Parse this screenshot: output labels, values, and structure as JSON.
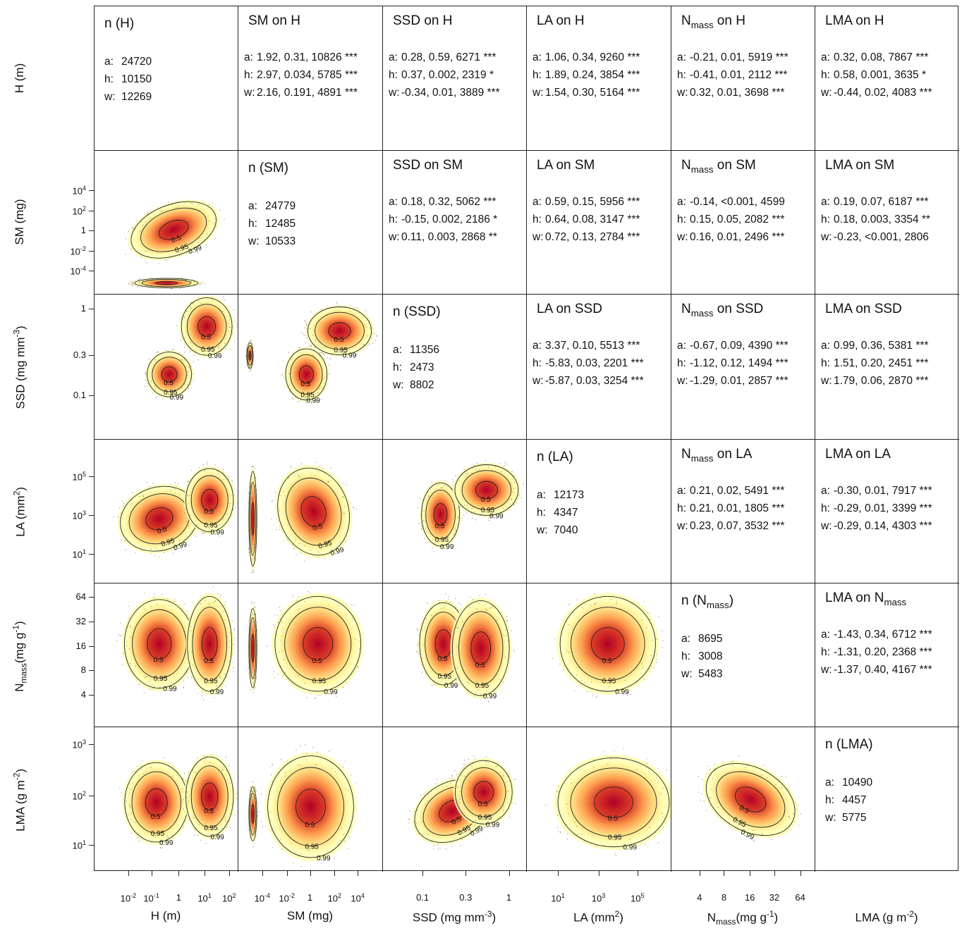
{
  "chart_data": {
    "type": "heatmap",
    "title": "",
    "variables": [
      {
        "key": "H",
        "label": "H (m)",
        "ticks": [
          "10^-2",
          "10^-1",
          "1",
          "10^1",
          "10^2"
        ]
      },
      {
        "key": "SM",
        "label": "SM (mg)",
        "ticks": [
          "10^-4",
          "10^-2",
          "1",
          "10^2",
          "10^4"
        ]
      },
      {
        "key": "SSD",
        "label": "SSD (mg mm^-3)",
        "ticks": [
          "0.1",
          "0.3",
          "1"
        ]
      },
      {
        "key": "LA",
        "label": "LA (mm^2)",
        "ticks": [
          "10^1",
          "10^3",
          "10^5"
        ]
      },
      {
        "key": "Nmass",
        "label": "Nmass(mg g^-1)",
        "ticks": [
          "4",
          "8",
          "16",
          "32",
          "64"
        ]
      },
      {
        "key": "LMA",
        "label": "LMA (g m^-2)",
        "ticks": [
          "10^1",
          "10^2",
          "10^3"
        ]
      }
    ],
    "y_tick_labels": {
      "H": [],
      "SM": [
        "10^4",
        "10^2",
        "1",
        "10^-2",
        "10^-4"
      ],
      "SSD": [
        "1",
        "0.3",
        "0.1"
      ],
      "LA": [
        "10^5",
        "10^3",
        "10^1"
      ],
      "Nmass": [
        "64",
        "32",
        "16",
        "8",
        "4"
      ],
      "LMA": [
        "10^3",
        "10^2",
        "10^1"
      ]
    },
    "contour_levels": [
      "0.5",
      "0.95",
      "0.99"
    ],
    "diagonal": [
      {
        "title": "n (H)",
        "a": "24720",
        "h": "10150",
        "w": "12269"
      },
      {
        "title": "n (SM)",
        "a": "24779",
        "h": "12485",
        "w": "10533"
      },
      {
        "title": "n (SSD)",
        "a": "11356",
        "h": "2473",
        "w": "8802"
      },
      {
        "title": "n (LA)",
        "a": "12173",
        "h": "4347",
        "w": "7040"
      },
      {
        "title": "n (Nmass)",
        "a": "8695",
        "h": "3008",
        "w": "5483"
      },
      {
        "title": "n (LMA)",
        "a": "10490",
        "h": "4457",
        "w": "5775"
      }
    ],
    "regressions": [
      {
        "row": 0,
        "col": 1,
        "title": "SM on H",
        "a": "1.92, 0.31, 10826 ***",
        "h": "2.97, 0.034, 5785 ***",
        "w": "2.16, 0.191, 4891 ***"
      },
      {
        "row": 0,
        "col": 2,
        "title": "SSD on H",
        "a": "0.28, 0.59, 6271 ***",
        "h": "0.37, 0.002, 2319 *",
        "w": "-0.34, 0.01, 3889 ***"
      },
      {
        "row": 0,
        "col": 3,
        "title": "LA on H",
        "a": "1.06, 0.34, 9260 ***",
        "h": "1.89, 0.24, 3854 ***",
        "w": "1.54, 0.30, 5164 ***"
      },
      {
        "row": 0,
        "col": 4,
        "title": "Nmass on H",
        "a": "-0.21, 0.01, 5919 ***",
        "h": "-0.41, 0.01, 2112 ***",
        "w": "0.32, 0.01, 3698 ***"
      },
      {
        "row": 0,
        "col": 5,
        "title": "LMA on H",
        "a": "0.32, 0.08, 7867 ***",
        "h": "0.58, 0.001, 3635 *",
        "w": "-0.44, 0.02, 4083 ***"
      },
      {
        "row": 1,
        "col": 2,
        "title": "SSD on SM",
        "a": "0.18, 0.32, 5062 ***",
        "h": "-0.15, 0.002, 2186 *",
        "w": "0.11, 0.003, 2868 **"
      },
      {
        "row": 1,
        "col": 3,
        "title": "LA on SM",
        "a": "0.59, 0.15, 5956 ***",
        "h": "0.64, 0.08, 3147 ***",
        "w": "0.72, 0.13, 2784 ***"
      },
      {
        "row": 1,
        "col": 4,
        "title": "Nmass on SM",
        "a": "-0.14, <0.001, 4599",
        "h": "0.15, 0.05, 2082 ***",
        "w": "0.16, 0.01, 2496 ***"
      },
      {
        "row": 1,
        "col": 5,
        "title": "LMA on SM",
        "a": "0.19, 0.07, 6187 ***",
        "h": "0.18, 0.003, 3354 **",
        "w": "-0.23, <0.001, 2806"
      },
      {
        "row": 2,
        "col": 3,
        "title": "LA on SSD",
        "a": "3.37, 0.10, 5513 ***",
        "h": "-5.83, 0.03, 2201 ***",
        "w": "-5.87, 0.03, 3254 ***"
      },
      {
        "row": 2,
        "col": 4,
        "title": "Nmass on SSD",
        "a": "-0.67, 0.09, 4390 ***",
        "h": "-1.12, 0.12, 1494 ***",
        "w": "-1.29, 0.01, 2857 ***"
      },
      {
        "row": 2,
        "col": 5,
        "title": "LMA on SSD",
        "a": "0.99, 0.36, 5381 ***",
        "h": "1.51, 0.20, 2451 ***",
        "w": "1.79, 0.06, 2870 ***"
      },
      {
        "row": 3,
        "col": 4,
        "title": "Nmass on LA",
        "a": "0.21, 0.02, 5491 ***",
        "h": "0.21, 0.01, 1805 ***",
        "w": "0.23, 0.07, 3532 ***"
      },
      {
        "row": 3,
        "col": 5,
        "title": "LMA on LA",
        "a": "-0.30, 0.01, 7917 ***",
        "h": "-0.29, 0.01, 3399 ***",
        "w": "-0.29, 0.14, 4303 ***"
      },
      {
        "row": 4,
        "col": 5,
        "title": "LMA on Nmass",
        "a": "-1.43, 0.34, 6712 ***",
        "h": "-1.31, 0.20, 2368 ***",
        "w": "-1.37, 0.40, 4167 ***"
      }
    ],
    "density_clusters": [
      {
        "row": 1,
        "col": 0,
        "blobs": [
          [
            0.55,
            0.55,
            0.28,
            0.16,
            -0.35
          ],
          [
            0.5,
            0.92,
            0.2,
            0.03,
            0
          ]
        ]
      },
      {
        "row": 2,
        "col": 0,
        "blobs": [
          [
            0.52,
            0.55,
            0.14,
            0.14,
            0
          ],
          [
            0.78,
            0.22,
            0.16,
            0.18,
            0
          ]
        ]
      },
      {
        "row": 2,
        "col": 1,
        "blobs": [
          [
            0.47,
            0.55,
            0.13,
            0.16,
            0
          ],
          [
            0.7,
            0.25,
            0.2,
            0.15,
            0
          ],
          [
            0.08,
            0.42,
            0.02,
            0.08,
            0
          ]
        ]
      },
      {
        "row": 2,
        "col": 2,
        "blobs": []
      },
      {
        "row": 3,
        "col": 0,
        "blobs": [
          [
            0.45,
            0.55,
            0.25,
            0.2,
            -0.3
          ],
          [
            0.8,
            0.42,
            0.15,
            0.2,
            0
          ]
        ]
      },
      {
        "row": 3,
        "col": 1,
        "blobs": [
          [
            0.52,
            0.5,
            0.22,
            0.28,
            -0.3
          ],
          [
            0.1,
            0.55,
            0.025,
            0.3,
            0
          ]
        ]
      },
      {
        "row": 3,
        "col": 2,
        "blobs": [
          [
            0.4,
            0.52,
            0.12,
            0.2,
            0
          ],
          [
            0.72,
            0.35,
            0.2,
            0.16,
            0
          ]
        ]
      },
      {
        "row": 4,
        "col": 0,
        "blobs": [
          [
            0.45,
            0.42,
            0.22,
            0.28,
            0
          ],
          [
            0.8,
            0.42,
            0.14,
            0.3,
            0
          ]
        ]
      },
      {
        "row": 4,
        "col": 1,
        "blobs": [
          [
            0.55,
            0.42,
            0.27,
            0.3,
            0
          ],
          [
            0.1,
            0.45,
            0.025,
            0.25,
            0
          ]
        ]
      },
      {
        "row": 4,
        "col": 2,
        "blobs": [
          [
            0.42,
            0.42,
            0.15,
            0.26,
            0
          ],
          [
            0.68,
            0.45,
            0.18,
            0.3,
            0
          ]
        ]
      },
      {
        "row": 4,
        "col": 3,
        "blobs": [
          [
            0.56,
            0.42,
            0.3,
            0.3,
            0
          ]
        ]
      },
      {
        "row": 5,
        "col": 0,
        "blobs": [
          [
            0.43,
            0.52,
            0.2,
            0.25,
            0
          ],
          [
            0.8,
            0.48,
            0.15,
            0.25,
            0
          ]
        ]
      },
      {
        "row": 5,
        "col": 1,
        "blobs": [
          [
            0.5,
            0.55,
            0.27,
            0.32,
            0
          ],
          [
            0.1,
            0.6,
            0.025,
            0.17,
            0
          ]
        ]
      },
      {
        "row": 5,
        "col": 2,
        "blobs": [
          [
            0.48,
            0.58,
            0.25,
            0.18,
            -0.5
          ],
          [
            0.7,
            0.45,
            0.18,
            0.2,
            0
          ]
        ]
      },
      {
        "row": 5,
        "col": 3,
        "blobs": [
          [
            0.6,
            0.52,
            0.35,
            0.28,
            0
          ]
        ]
      },
      {
        "row": 5,
        "col": 4,
        "blobs": [
          [
            0.55,
            0.5,
            0.3,
            0.2,
            0.5
          ]
        ]
      }
    ],
    "colors": {
      "low": "#ffffb2",
      "mid": "#fd8d3c",
      "high": "#b10026",
      "contour": "#222222"
    }
  }
}
